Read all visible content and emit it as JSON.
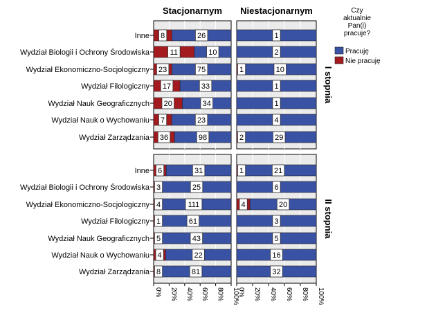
{
  "chart_data": {
    "type": "bar",
    "stacked": "percent",
    "orientation": "horizontal",
    "columns": [
      "Stacjonarnym",
      "Niestacjonarnym"
    ],
    "rows": [
      "I stopnia",
      "II stopnia"
    ],
    "categories": [
      "Inne",
      "Wydział Biologii i Ochrony Środowiska",
      "Wydział Ekonomiczno-Socjologiczny",
      "Wydział Filologiczny",
      "Wydział Nauk Geograficznych",
      "Wydział Nauk o Wychowaniu",
      "Wydział Zarządzania"
    ],
    "legend": {
      "title": "Czy aktualnie Pan(i) pracuje?",
      "position": "right",
      "items": [
        {
          "name": "Pracuję",
          "color": "#3a52a4"
        },
        {
          "name": "Nie pracuję",
          "color": "#a31a1f"
        }
      ]
    },
    "x_ticks": [
      "0%",
      "20%",
      "40%",
      "60%",
      "80%",
      "100%"
    ],
    "xlim": [
      0,
      100
    ],
    "grid": true,
    "panels": [
      {
        "column": "Stacjonarnym",
        "row": "I stopnia",
        "nie_pracuje": [
          8,
          11,
          23,
          17,
          20,
          7,
          36
        ],
        "pracuje": [
          26,
          10,
          75,
          33,
          34,
          23,
          98
        ]
      },
      {
        "column": "Niestacjonarnym",
        "row": "I stopnia",
        "nie_pracuje": [
          0,
          0,
          1,
          0,
          0,
          0,
          2
        ],
        "pracuje": [
          1,
          2,
          10,
          1,
          1,
          4,
          29
        ]
      },
      {
        "column": "Stacjonarnym",
        "row": "II stopnia",
        "nie_pracuje": [
          6,
          3,
          4,
          1,
          5,
          4,
          8
        ],
        "pracuje": [
          31,
          25,
          111,
          61,
          43,
          22,
          81
        ]
      },
      {
        "column": "Niestacjonarnym",
        "row": "II stopnia",
        "nie_pracuje": [
          1,
          0,
          4,
          0,
          0,
          0,
          0
        ],
        "pracuje": [
          21,
          6,
          20,
          3,
          5,
          16,
          32
        ]
      }
    ]
  }
}
